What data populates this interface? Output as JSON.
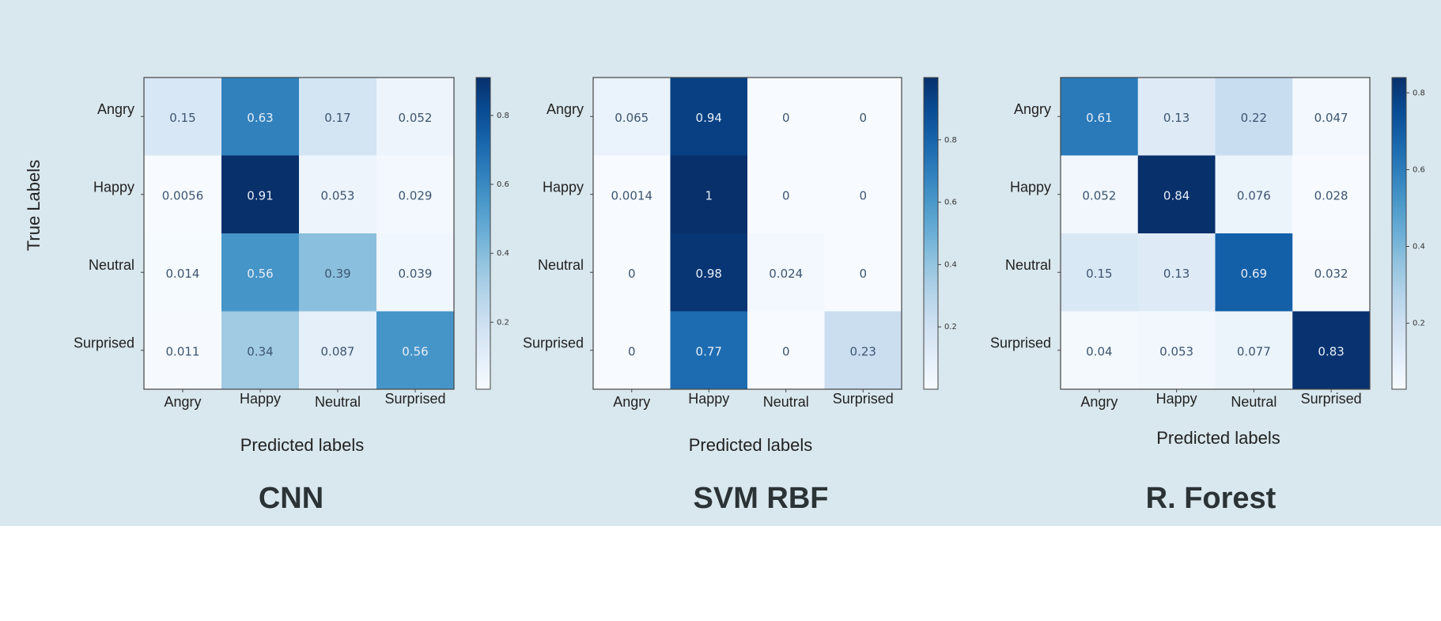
{
  "chart_data": [
    {
      "type": "heatmap",
      "title": "CNN",
      "ylabel": "True Labels",
      "xlabel": "Predicted labels",
      "rows": [
        "Angry",
        "Happy",
        "Neutral",
        "Surprised"
      ],
      "cols": [
        "Angry",
        "Happy",
        "Neutral",
        "Surprised"
      ],
      "values": [
        [
          0.15,
          0.63,
          0.17,
          0.052
        ],
        [
          0.0056,
          0.91,
          0.053,
          0.029
        ],
        [
          0.014,
          0.56,
          0.39,
          0.039
        ],
        [
          0.011,
          0.34,
          0.087,
          0.56
        ]
      ],
      "labels": [
        [
          "0.15",
          "0.63",
          "0.17",
          "0.052"
        ],
        [
          "0.0056",
          "0.91",
          "0.053",
          "0.029"
        ],
        [
          "0.014",
          "0.56",
          "0.39",
          "0.039"
        ],
        [
          "0.011",
          "0.34",
          "0.087",
          "0.56"
        ]
      ],
      "colorbar": {
        "ticks": [
          "0.2",
          "0.4",
          "0.6",
          "0.8"
        ],
        "range": [
          0.0056,
          0.91
        ],
        "colormap": "Blues"
      }
    },
    {
      "type": "heatmap",
      "title": "SVM RBF",
      "ylabel": "",
      "xlabel": "Predicted labels",
      "rows": [
        "Angry",
        "Happy",
        "Neutral",
        "Surprised"
      ],
      "cols": [
        "Angry",
        "Happy",
        "Neutral",
        "Surprised"
      ],
      "values": [
        [
          0.065,
          0.94,
          0,
          0
        ],
        [
          0.0014,
          1,
          0,
          0
        ],
        [
          0,
          0.98,
          0.024,
          0
        ],
        [
          0,
          0.77,
          0,
          0.23
        ]
      ],
      "labels": [
        [
          "0.065",
          "0.94",
          "0",
          "0"
        ],
        [
          "0.0014",
          "1",
          "0",
          "0"
        ],
        [
          "0",
          "0.98",
          "0.024",
          "0"
        ],
        [
          "0",
          "0.77",
          "0",
          "0.23"
        ]
      ],
      "colorbar": {
        "ticks": [
          "0.2",
          "0.4",
          "0.6",
          "0.8"
        ],
        "range": [
          0,
          1
        ],
        "colormap": "Blues"
      }
    },
    {
      "type": "heatmap",
      "title": "R. Forest",
      "ylabel": "",
      "xlabel": "Predicted labels",
      "rows": [
        "Angry",
        "Happy",
        "Neutral",
        "Surprised"
      ],
      "cols": [
        "Angry",
        "Happy",
        "Neutral",
        "Surprised"
      ],
      "values": [
        [
          0.61,
          0.13,
          0.22,
          0.047
        ],
        [
          0.052,
          0.84,
          0.076,
          0.028
        ],
        [
          0.15,
          0.13,
          0.69,
          0.032
        ],
        [
          0.04,
          0.053,
          0.077,
          0.83
        ]
      ],
      "labels": [
        [
          "0.61",
          "0.13",
          "0.22",
          "0.047"
        ],
        [
          "0.052",
          "0.84",
          "0.076",
          "0.028"
        ],
        [
          "0.15",
          "0.13",
          "0.69",
          "0.032"
        ],
        [
          "0.04",
          "0.053",
          "0.077",
          "0.83"
        ]
      ],
      "colorbar": {
        "ticks": [
          "0.2",
          "0.4",
          "0.6",
          "0.8"
        ],
        "range": [
          0.028,
          0.84
        ],
        "colormap": "Blues"
      }
    }
  ],
  "colors": {
    "panel_background": "#d9e7ee",
    "page_background": "#ffffff",
    "title": "#2b3336"
  }
}
